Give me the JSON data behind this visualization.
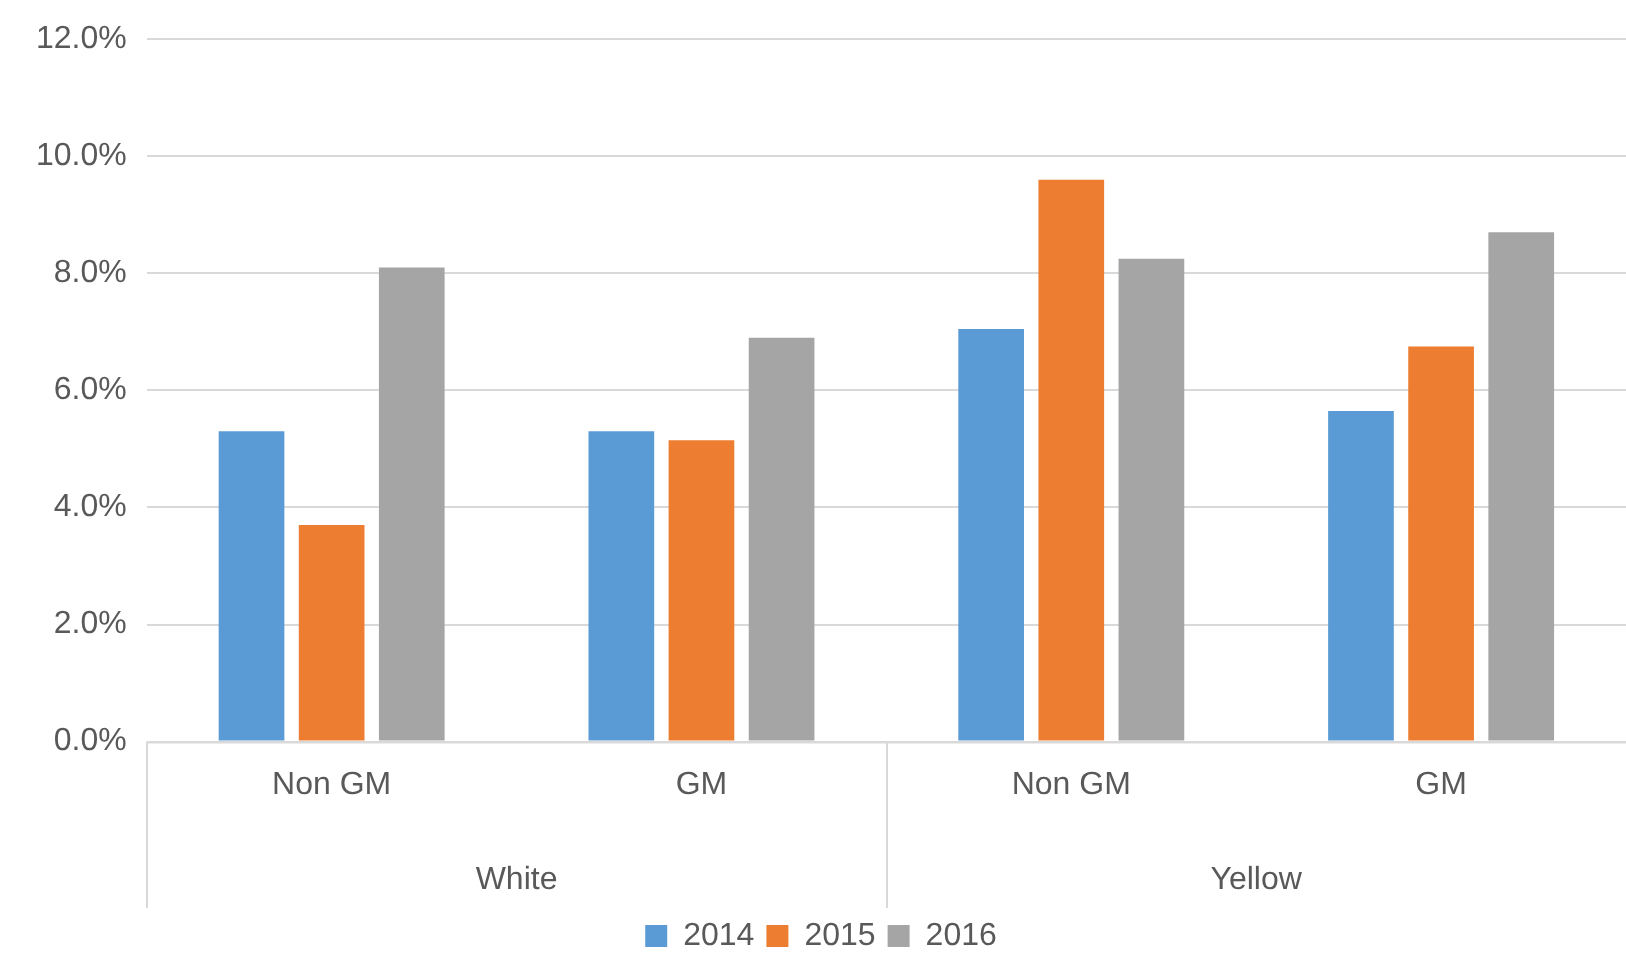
{
  "chart_data": {
    "type": "bar",
    "categories": [
      "Non GM",
      "GM",
      "Non GM",
      "GM"
    ],
    "series": [
      {
        "name": "2014",
        "color": "#5b9bd5",
        "values": [
          5.3,
          5.3,
          7.05,
          5.65
        ]
      },
      {
        "name": "2015",
        "color": "#ed7d31",
        "values": [
          3.7,
          5.15,
          9.6,
          6.75
        ]
      },
      {
        "name": "2016",
        "color": "#a5a5a5",
        "values": [
          8.1,
          6.9,
          8.25,
          8.7
        ]
      }
    ],
    "ylim": [
      0,
      12
    ],
    "yticks": [
      {
        "value": 0,
        "label": "0.0%"
      },
      {
        "value": 2,
        "label": "2.0%"
      },
      {
        "value": 4,
        "label": "4.0%"
      },
      {
        "value": 6,
        "label": "6.0%"
      },
      {
        "value": 8,
        "label": "8.0%"
      },
      {
        "value": 10,
        "label": "10.0%"
      },
      {
        "value": 12,
        "label": "12.0%"
      }
    ],
    "annotations": [
      "White",
      "Yellow"
    ],
    "grid": "y",
    "legend": "bottom"
  }
}
